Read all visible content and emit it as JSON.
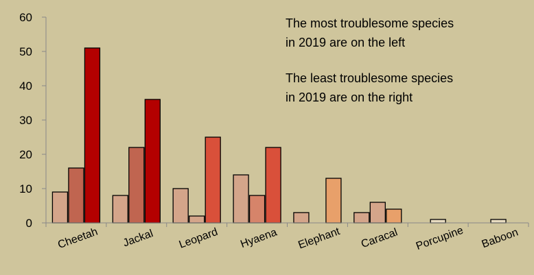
{
  "chart_data": {
    "type": "bar",
    "categories": [
      "Cheetah",
      "Jackal",
      "Leopard",
      "Hyaena",
      "Elephant",
      "Caracal",
      "Porcupine",
      "Baboon"
    ],
    "values": [
      [
        9,
        16,
        51
      ],
      [
        8,
        22,
        36
      ],
      [
        10,
        2,
        25
      ],
      [
        14,
        8,
        22
      ],
      [
        3,
        0,
        13
      ],
      [
        3,
        6,
        4
      ],
      [
        0,
        1,
        0
      ],
      [
        0,
        1,
        0
      ]
    ],
    "colors": [
      [
        "#d4a58a",
        "#c06550",
        "#b30000"
      ],
      [
        "#d4a58a",
        "#c06550",
        "#b30000"
      ],
      [
        "#d4a58a",
        "#d4a58a",
        "#d9503a"
      ],
      [
        "#d4a58a",
        "#d6846a",
        "#d9503a"
      ],
      [
        "#d4a58a",
        "#d4a58a",
        "#e8a06a"
      ],
      [
        "#d4a58a",
        "#d4a58a",
        "#e8a06a"
      ],
      [
        "#e8dcc0",
        "#e8dcc0",
        "#e8dcc0"
      ],
      [
        "#e8dcc0",
        "#e8dcc0",
        "#e8dcc0"
      ]
    ],
    "ylim": [
      0,
      60
    ],
    "yticks": [
      0,
      10,
      20,
      30,
      40,
      50,
      60
    ],
    "title": "",
    "xlabel": "",
    "ylabel": "",
    "grid": false
  },
  "annotations": [
    {
      "line1": "The most troublesome species",
      "line2": " in 2019 are on the left"
    },
    {
      "line1": "The least troublesome species",
      "line2": " in 2019 are on the right"
    }
  ]
}
